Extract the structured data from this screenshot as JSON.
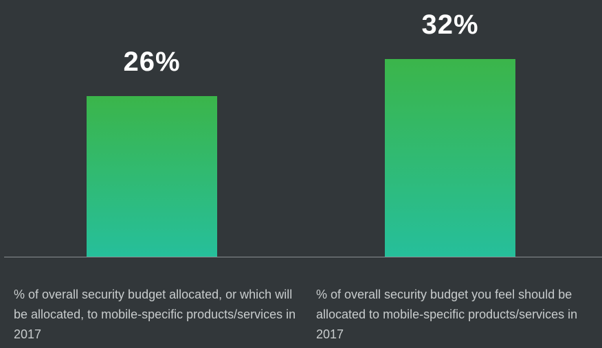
{
  "chart_data": {
    "type": "bar",
    "categories": [
      "% of overall security budget allocated, or which will be allocated, to mobile-specific products/services in 2017",
      "% of overall security budget you feel should be allocated to mobile-specific products/services in 2017"
    ],
    "values": [
      26,
      32
    ],
    "value_labels": [
      "26%",
      "32%"
    ],
    "colors": [
      "#3bb54a",
      "#26bf9b"
    ]
  }
}
